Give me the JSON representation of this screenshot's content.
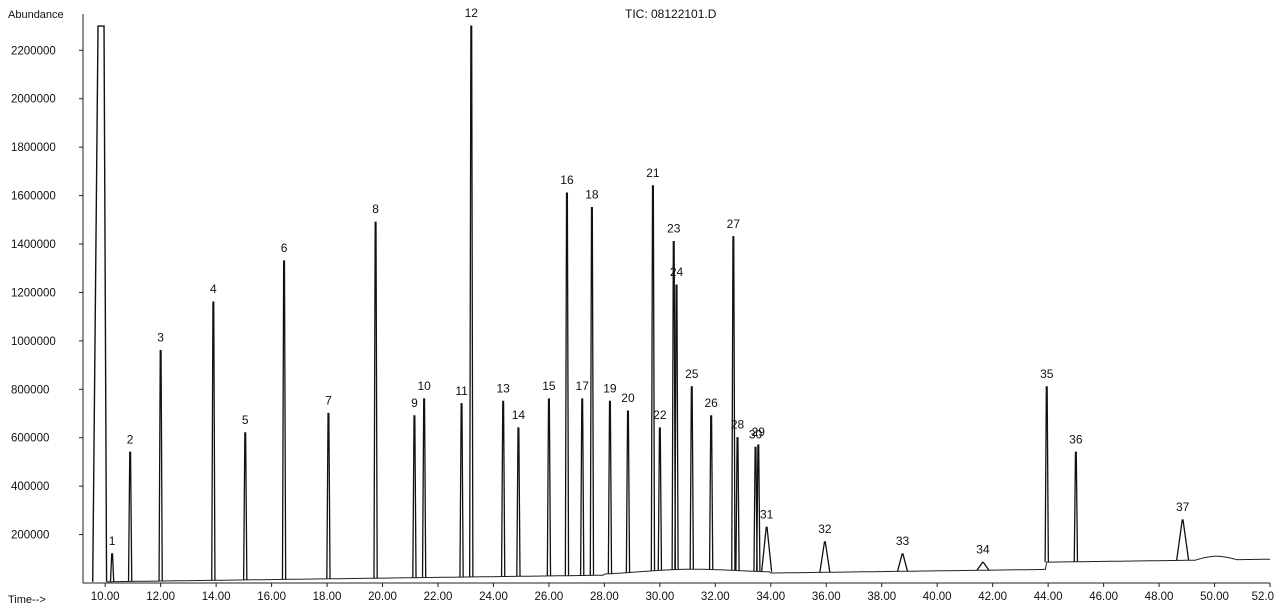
{
  "chart_data": {
    "type": "line",
    "title": "TIC: 08122101.D",
    "ylabel": "Abundance",
    "xlabel": "Time-->",
    "xlim": [
      9.2,
      52.0
    ],
    "ylim": [
      0,
      2350000
    ],
    "x_ticks": [
      10,
      12,
      14,
      16,
      18,
      20,
      22,
      24,
      26,
      28,
      30,
      32,
      34,
      36,
      38,
      40,
      42,
      44,
      46,
      48,
      50,
      52
    ],
    "x_tick_labels": [
      "10.00",
      "12.00",
      "14.00",
      "16.00",
      "18.00",
      "20.00",
      "22.00",
      "24.00",
      "26.00",
      "28.00",
      "30.00",
      "32.00",
      "34.00",
      "36.00",
      "38.00",
      "40.00",
      "42.00",
      "44.00",
      "46.00",
      "48.00",
      "50.00",
      "52.0"
    ],
    "y_ticks": [
      200000,
      400000,
      600000,
      800000,
      1000000,
      1200000,
      1400000,
      1600000,
      1800000,
      2000000,
      2200000
    ],
    "y_tick_labels": [
      "200000",
      "400000",
      "600000",
      "800000",
      "1000000",
      "1200000",
      "1400000",
      "1600000",
      "1800000",
      "2000000",
      "2200000"
    ],
    "grid": false,
    "solvent_peak": {
      "x": 9.85,
      "y": 2300000
    },
    "peaks": [
      {
        "label": "1",
        "x": 10.25,
        "y": 120000
      },
      {
        "label": "2",
        "x": 10.9,
        "y": 540000
      },
      {
        "label": "3",
        "x": 12.0,
        "y": 960000
      },
      {
        "label": "4",
        "x": 13.9,
        "y": 1160000
      },
      {
        "label": "5",
        "x": 15.05,
        "y": 620000
      },
      {
        "label": "6",
        "x": 16.45,
        "y": 1330000
      },
      {
        "label": "7",
        "x": 18.05,
        "y": 700000
      },
      {
        "label": "8",
        "x": 19.75,
        "y": 1490000
      },
      {
        "label": "9",
        "x": 21.15,
        "y": 690000
      },
      {
        "label": "10",
        "x": 21.5,
        "y": 760000
      },
      {
        "label": "11",
        "x": 22.85,
        "y": 740000
      },
      {
        "label": "12",
        "x": 23.2,
        "y": 2300000
      },
      {
        "label": "13",
        "x": 24.35,
        "y": 750000
      },
      {
        "label": "14",
        "x": 24.9,
        "y": 640000
      },
      {
        "label": "15",
        "x": 26.0,
        "y": 760000
      },
      {
        "label": "16",
        "x": 26.65,
        "y": 1610000
      },
      {
        "label": "17",
        "x": 27.2,
        "y": 760000
      },
      {
        "label": "18",
        "x": 27.55,
        "y": 1550000
      },
      {
        "label": "19",
        "x": 28.2,
        "y": 750000
      },
      {
        "label": "20",
        "x": 28.85,
        "y": 710000
      },
      {
        "label": "21",
        "x": 29.75,
        "y": 1640000
      },
      {
        "label": "22",
        "x": 30.0,
        "y": 640000
      },
      {
        "label": "23",
        "x": 30.5,
        "y": 1410000
      },
      {
        "label": "24",
        "x": 30.6,
        "y": 1230000
      },
      {
        "label": "25",
        "x": 31.15,
        "y": 810000
      },
      {
        "label": "26",
        "x": 31.85,
        "y": 690000
      },
      {
        "label": "27",
        "x": 32.65,
        "y": 1430000
      },
      {
        "label": "28",
        "x": 32.8,
        "y": 600000
      },
      {
        "label": "29",
        "x": 33.55,
        "y": 570000
      },
      {
        "label": "30",
        "x": 33.45,
        "y": 560000
      },
      {
        "label": "31",
        "x": 33.85,
        "y": 230000
      },
      {
        "label": "32",
        "x": 35.95,
        "y": 170000
      },
      {
        "label": "33",
        "x": 38.75,
        "y": 120000
      },
      {
        "label": "34",
        "x": 41.65,
        "y": 85000
      },
      {
        "label": "35",
        "x": 43.95,
        "y": 810000
      },
      {
        "label": "36",
        "x": 45.0,
        "y": 540000
      },
      {
        "label": "37",
        "x": 48.85,
        "y": 260000
      }
    ]
  }
}
